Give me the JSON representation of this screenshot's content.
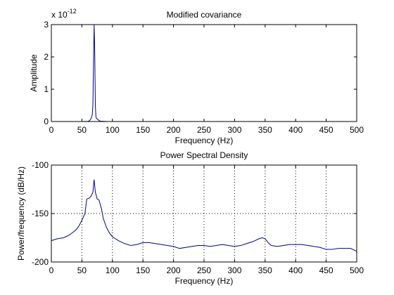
{
  "chart_data": [
    {
      "type": "line",
      "title": "Modified covariance",
      "xlabel": "Frequency (Hz)",
      "ylabel": "Amplitude",
      "y_exponent_label": "x 10",
      "y_exponent": "-12",
      "xlim": [
        0,
        500
      ],
      "ylim": [
        0,
        3
      ],
      "xticks": [
        0,
        50,
        100,
        150,
        200,
        250,
        300,
        350,
        400,
        450,
        500
      ],
      "yticks": [
        0,
        1,
        2,
        3
      ],
      "xtick_labels": [
        "0",
        "50",
        "100",
        "150",
        "200",
        "250",
        "300",
        "350",
        "400",
        "450",
        "500"
      ],
      "ytick_labels": [
        "0",
        "1",
        "2",
        "3"
      ],
      "grid": false,
      "line_color": "#00008b",
      "series": [
        {
          "x": [
            0,
            50,
            60,
            62,
            64,
            66,
            67,
            68,
            69,
            70,
            71,
            72,
            73,
            74,
            76,
            78,
            80,
            90,
            100,
            150,
            200,
            250,
            300,
            350,
            400,
            450,
            500
          ],
          "y": [
            0,
            0,
            0.005,
            0.02,
            0.06,
            0.14,
            0.22,
            0.5,
            1.8,
            3.1,
            2.2,
            0.5,
            0.14,
            0.09,
            0.07,
            0.03,
            0.01,
            0.003,
            0.001,
            0.001,
            0.001,
            0.001,
            0.001,
            0.001,
            0.001,
            0.001,
            0.001
          ]
        }
      ]
    },
    {
      "type": "line",
      "title": "Power Spectral Density",
      "xlabel": "Frequency (Hz)",
      "ylabel": "Power/frequency (dB/Hz)",
      "xlim": [
        0,
        500
      ],
      "ylim": [
        -200,
        -100
      ],
      "xticks": [
        0,
        50,
        100,
        150,
        200,
        250,
        300,
        350,
        400,
        450,
        500
      ],
      "yticks": [
        -200,
        -150,
        -100
      ],
      "xtick_labels": [
        "0",
        "50",
        "100",
        "150",
        "200",
        "250",
        "300",
        "350",
        "400",
        "450",
        "500"
      ],
      "ytick_labels": [
        "-200",
        "-150",
        "-100"
      ],
      "grid": true,
      "line_color": "#00008b",
      "series": [
        {
          "x": [
            0,
            10,
            20,
            30,
            40,
            45,
            50,
            55,
            58,
            62,
            65,
            68,
            70,
            72,
            75,
            78,
            82,
            85,
            90,
            95,
            100,
            110,
            120,
            130,
            140,
            150,
            160,
            170,
            180,
            190,
            200,
            210,
            220,
            230,
            240,
            250,
            260,
            270,
            280,
            290,
            300,
            310,
            320,
            330,
            340,
            345,
            350,
            355,
            360,
            370,
            380,
            390,
            400,
            410,
            420,
            430,
            440,
            450,
            460,
            470,
            480,
            490,
            500
          ],
          "y": [
            -178,
            -176,
            -175,
            -172,
            -167,
            -163,
            -157,
            -150,
            -135,
            -134,
            -132,
            -128,
            -115,
            -128,
            -135,
            -136,
            -145,
            -155,
            -164,
            -170,
            -174,
            -178,
            -181,
            -183,
            -182,
            -180,
            -180,
            -181,
            -182,
            -183,
            -184,
            -186,
            -185,
            -184,
            -183,
            -183,
            -184,
            -183,
            -182,
            -183,
            -184,
            -183,
            -181,
            -179,
            -176,
            -175,
            -176,
            -180,
            -183,
            -184,
            -183,
            -182,
            -182,
            -182,
            -183,
            -184,
            -185,
            -187,
            -187,
            -186,
            -186,
            -186,
            -189
          ]
        }
      ]
    }
  ]
}
